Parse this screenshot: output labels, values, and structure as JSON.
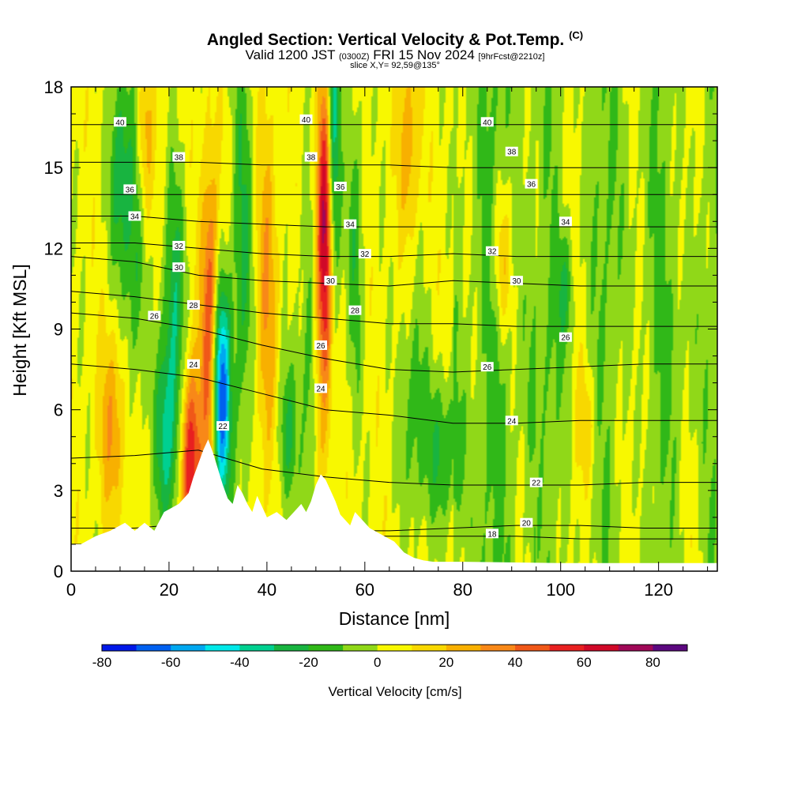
{
  "title": {
    "main": "Angled Section: Vertical Velocity & Pot.Temp.",
    "units": "(C)",
    "valid_prefix": "Valid 1200 JST",
    "valid_utc": "(0300Z)",
    "valid_date": "FRI 15 Nov 2024",
    "fcst": "[9hrFcst@2210z]",
    "slice": "slice X,Y= 92,59@135°"
  },
  "chart_data": {
    "type": "heatmap",
    "xlabel": "Distance [nm]",
    "ylabel": "Height [Kft MSL]",
    "xlim": [
      0,
      132
    ],
    "ylim": [
      0,
      18
    ],
    "x_ticks": [
      "0",
      "20",
      "40",
      "60",
      "80",
      "100",
      "120"
    ],
    "y_ticks": [
      "0",
      "3",
      "6",
      "9",
      "12",
      "15",
      "18"
    ],
    "colorbar": {
      "label": "Vertical Velocity [cm/s]",
      "boundaries": [
        -80,
        -70,
        -60,
        -50,
        -40,
        -30,
        -20,
        -10,
        0,
        10,
        20,
        30,
        40,
        50,
        60,
        70,
        80,
        90
      ],
      "tick_labels": [
        "-80",
        "-60",
        "-40",
        "-20",
        "0",
        "20",
        "40",
        "60",
        "80"
      ],
      "colors": [
        "#0018e8",
        "#0060f0",
        "#00a8f0",
        "#00e8e8",
        "#00d090",
        "#18b440",
        "#30b818",
        "#90d818",
        "#f8f800",
        "#f8d800",
        "#f8b000",
        "#f88818",
        "#f05818",
        "#e82020",
        "#d00828",
        "#a00858",
        "#5c0880"
      ]
    },
    "terrain_kft": [
      [
        0,
        1.0
      ],
      [
        2,
        1.0
      ],
      [
        5,
        1.3
      ],
      [
        8,
        1.5
      ],
      [
        11,
        1.8
      ],
      [
        13,
        1.5
      ],
      [
        15,
        1.8
      ],
      [
        17,
        1.5
      ],
      [
        19,
        2.2
      ],
      [
        22,
        2.5
      ],
      [
        24,
        2.9
      ],
      [
        25,
        3.5
      ],
      [
        26,
        4.0
      ],
      [
        27,
        4.5
      ],
      [
        28,
        4.9
      ],
      [
        29,
        4.4
      ],
      [
        30,
        3.8
      ],
      [
        31,
        3.2
      ],
      [
        32,
        2.7
      ],
      [
        33,
        2.5
      ],
      [
        34,
        3.2
      ],
      [
        35,
        2.9
      ],
      [
        36,
        2.5
      ],
      [
        37,
        2.2
      ],
      [
        38,
        2.8
      ],
      [
        39,
        2.4
      ],
      [
        40,
        2.0
      ],
      [
        42,
        2.2
      ],
      [
        44,
        1.9
      ],
      [
        46,
        2.3
      ],
      [
        47,
        2.5
      ],
      [
        48,
        2.2
      ],
      [
        49,
        2.6
      ],
      [
        50,
        3.2
      ],
      [
        51,
        3.6
      ],
      [
        52,
        3.4
      ],
      [
        53,
        3.0
      ],
      [
        54,
        2.6
      ],
      [
        55,
        2.1
      ],
      [
        56,
        1.9
      ],
      [
        57,
        1.7
      ],
      [
        58,
        2.2
      ],
      [
        60,
        1.8
      ],
      [
        61,
        1.6
      ],
      [
        62,
        1.5
      ],
      [
        64,
        1.3
      ],
      [
        66,
        1.1
      ],
      [
        68,
        0.7
      ],
      [
        70,
        0.5
      ],
      [
        72,
        0.4
      ],
      [
        74,
        0.35
      ],
      [
        80,
        0.35
      ],
      [
        100,
        0.3
      ],
      [
        120,
        0.3
      ],
      [
        126,
        0.3
      ],
      [
        130,
        0.3
      ],
      [
        132,
        0.3
      ]
    ],
    "theta_contours": [
      {
        "label": "18",
        "y": [
          1.0,
          1.0,
          1.2,
          1.2,
          1.3,
          1.3,
          1.3,
          1.3,
          1.2,
          1.2,
          1.2
        ]
      },
      {
        "label": "20",
        "y": [
          1.6,
          1.6,
          1.8,
          1.6,
          1.5,
          1.5,
          1.6,
          1.7,
          1.7,
          1.6,
          1.6
        ]
      },
      {
        "label": "22",
        "y": [
          4.2,
          4.3,
          4.5,
          3.8,
          3.5,
          3.3,
          3.2,
          3.2,
          3.2,
          3.3,
          3.3
        ]
      },
      {
        "label": "24",
        "y": [
          7.7,
          7.5,
          7.2,
          6.6,
          6.0,
          5.8,
          5.5,
          5.5,
          5.6,
          5.6,
          5.6
        ]
      },
      {
        "label": "26",
        "y": [
          9.6,
          9.4,
          9.0,
          8.4,
          7.9,
          7.5,
          7.4,
          7.5,
          7.6,
          7.7,
          7.7
        ]
      },
      {
        "label": "28",
        "y": [
          10.4,
          10.2,
          9.9,
          9.6,
          9.4,
          9.2,
          9.2,
          9.1,
          9.1,
          9.1,
          9.1
        ]
      },
      {
        "label": "30",
        "y": [
          11.7,
          11.5,
          11.0,
          10.8,
          10.7,
          10.6,
          10.8,
          10.7,
          10.6,
          10.6,
          10.6
        ]
      },
      {
        "label": "32",
        "y": [
          12.2,
          12.2,
          12.0,
          11.8,
          11.7,
          11.7,
          11.8,
          11.7,
          11.7,
          11.7,
          11.7
        ]
      },
      {
        "label": "34",
        "y": [
          13.2,
          13.2,
          13.0,
          12.9,
          12.8,
          12.8,
          12.8,
          12.8,
          12.8,
          12.8,
          12.8
        ]
      },
      {
        "label": "36",
        "y": [
          14.0,
          14.0,
          14.0,
          14.0,
          14.0,
          14.0,
          14.0,
          14.0,
          14.0,
          14.0,
          14.0
        ]
      },
      {
        "label": "38",
        "y": [
          15.2,
          15.2,
          15.2,
          15.1,
          15.1,
          15.1,
          15.0,
          15.0,
          15.0,
          15.0,
          15.0
        ]
      },
      {
        "label": "40",
        "y": [
          16.6,
          16.6,
          16.6,
          16.6,
          16.6,
          16.6,
          16.6,
          16.6,
          16.6,
          16.6,
          16.6
        ]
      }
    ],
    "contour_x": [
      0,
      13,
      26,
      39,
      52,
      65,
      78,
      91,
      104,
      117,
      132
    ],
    "contour_labels": [
      {
        "text": "40",
        "x": 10,
        "y": 16.7
      },
      {
        "text": "40",
        "x": 48,
        "y": 16.8
      },
      {
        "text": "40",
        "x": 85,
        "y": 16.7
      },
      {
        "text": "38",
        "x": 22,
        "y": 15.4
      },
      {
        "text": "38",
        "x": 49,
        "y": 15.4
      },
      {
        "text": "38",
        "x": 90,
        "y": 15.6
      },
      {
        "text": "36",
        "x": 12,
        "y": 14.2
      },
      {
        "text": "36",
        "x": 55,
        "y": 14.3
      },
      {
        "text": "36",
        "x": 94,
        "y": 14.4
      },
      {
        "text": "34",
        "x": 13,
        "y": 13.2
      },
      {
        "text": "34",
        "x": 57,
        "y": 12.9
      },
      {
        "text": "34",
        "x": 101,
        "y": 13.0
      },
      {
        "text": "32",
        "x": 22,
        "y": 12.1
      },
      {
        "text": "32",
        "x": 60,
        "y": 11.8
      },
      {
        "text": "32",
        "x": 86,
        "y": 11.9
      },
      {
        "text": "30",
        "x": 22,
        "y": 11.3
      },
      {
        "text": "30",
        "x": 53,
        "y": 10.8
      },
      {
        "text": "30",
        "x": 91,
        "y": 10.8
      },
      {
        "text": "28",
        "x": 25,
        "y": 9.9
      },
      {
        "text": "28",
        "x": 58,
        "y": 9.7
      },
      {
        "text": "26",
        "x": 17,
        "y": 9.5
      },
      {
        "text": "26",
        "x": 51,
        "y": 8.4
      },
      {
        "text": "26",
        "x": 85,
        "y": 7.6
      },
      {
        "text": "26",
        "x": 101,
        "y": 8.7
      },
      {
        "text": "24",
        "x": 25,
        "y": 7.7
      },
      {
        "text": "24",
        "x": 51,
        "y": 6.8
      },
      {
        "text": "24",
        "x": 90,
        "y": 5.6
      },
      {
        "text": "22",
        "x": 31,
        "y": 5.4
      },
      {
        "text": "22",
        "x": 95,
        "y": 3.3
      },
      {
        "text": "20",
        "x": 93,
        "y": 1.8
      },
      {
        "text": "18",
        "x": 86,
        "y": 1.4
      }
    ],
    "velocity_features": [
      {
        "x": 30.5,
        "y": 6.5,
        "sx": 1.4,
        "sy": 3.0,
        "value": -80
      },
      {
        "x": 28.5,
        "y": 8.5,
        "sx": 1.3,
        "sy": 4.5,
        "value": 55
      },
      {
        "x": 24.5,
        "y": 4.0,
        "sx": 1.4,
        "sy": 2.5,
        "value": 60
      },
      {
        "x": 53.5,
        "y": 15.0,
        "sx": 1.0,
        "sy": 4.5,
        "value": -55
      },
      {
        "x": 52.0,
        "y": 13.5,
        "sx": 1.2,
        "sy": 3.5,
        "value": 60
      },
      {
        "x": 51.5,
        "y": 9.0,
        "sx": 1.5,
        "sy": 4.0,
        "value": 35
      },
      {
        "x": 49.0,
        "y": 8.0,
        "sx": 1.5,
        "sy": 4.0,
        "value": -25
      },
      {
        "x": 10.0,
        "y": 15.0,
        "sx": 1.5,
        "sy": 3.0,
        "value": -30
      },
      {
        "x": 13.0,
        "y": 12.0,
        "sx": 1.5,
        "sy": 4.0,
        "value": -25
      },
      {
        "x": 21.0,
        "y": 10.0,
        "sx": 1.5,
        "sy": 3.5,
        "value": -30
      },
      {
        "x": 19.5,
        "y": 5.0,
        "sx": 1.8,
        "sy": 2.5,
        "value": -35
      },
      {
        "x": 8.5,
        "y": 5.5,
        "sx": 2.0,
        "sy": 2.5,
        "value": 25
      },
      {
        "x": 35.0,
        "y": 12.0,
        "sx": 1.5,
        "sy": 6.0,
        "value": -25
      },
      {
        "x": 40.0,
        "y": 10.0,
        "sx": 1.5,
        "sy": 5.0,
        "value": 25
      },
      {
        "x": 69.0,
        "y": 16.0,
        "sx": 1.5,
        "sy": 2.5,
        "value": 25
      },
      {
        "x": 70.0,
        "y": 6.0,
        "sx": 2.0,
        "sy": 3.0,
        "value": -20
      },
      {
        "x": 76.0,
        "y": 4.5,
        "sx": 2.5,
        "sy": 2.0,
        "value": -25
      },
      {
        "x": 88.0,
        "y": 11.5,
        "sx": 1.3,
        "sy": 2.0,
        "value": 25
      },
      {
        "x": 101.0,
        "y": 10.5,
        "sx": 1.2,
        "sy": 1.5,
        "value": -20
      },
      {
        "x": 113.0,
        "y": 13.5,
        "sx": 6.0,
        "sy": 4.0,
        "value": -5
      },
      {
        "x": 95.0,
        "y": 7.5,
        "sx": 4.0,
        "sy": 2.0,
        "value": -5
      },
      {
        "x": 105.0,
        "y": 5.5,
        "sx": 1.5,
        "sy": 1.5,
        "value": 15
      },
      {
        "x": 125.0,
        "y": 8.0,
        "sx": 3.0,
        "sy": 3.0,
        "value": -8
      },
      {
        "x": 58.0,
        "y": 12.0,
        "sx": 1.2,
        "sy": 4.0,
        "value": -20
      },
      {
        "x": 44.0,
        "y": 5.0,
        "sx": 1.5,
        "sy": 2.0,
        "value": -25
      },
      {
        "x": 15.0,
        "y": 16.0,
        "sx": 1.2,
        "sy": 2.5,
        "value": 25
      }
    ]
  }
}
